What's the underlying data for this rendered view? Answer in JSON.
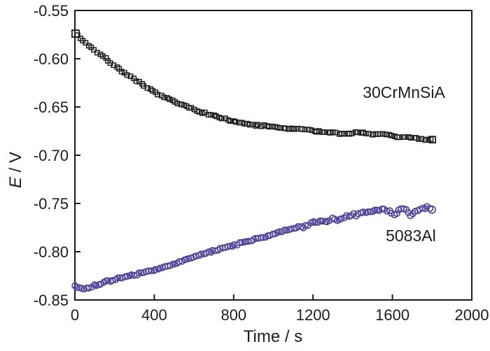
{
  "chart_data": {
    "type": "scatter",
    "title": "",
    "xlabel": "Time / s",
    "ylabel": "E / V",
    "ylabel_parts": {
      "symbol": "E",
      "rest": " / V"
    },
    "xlim": [
      0,
      2000
    ],
    "ylim": [
      -0.85,
      -0.55
    ],
    "x_ticks": [
      0,
      400,
      800,
      1200,
      1600,
      2000
    ],
    "x_tick_labels": [
      "0",
      "400",
      "800",
      "1200",
      "1600",
      "2000"
    ],
    "y_ticks": [
      -0.55,
      -0.6,
      -0.65,
      -0.7,
      -0.75,
      -0.8,
      -0.85
    ],
    "y_tick_labels": [
      "-0.55",
      "-0.60",
      "-0.65",
      "-0.70",
      "-0.75",
      "-0.80",
      "-0.85"
    ],
    "grid": false,
    "legend_position": "inline-annotations",
    "frame": "full-box",
    "tick_direction": "in",
    "axis_color": "#1c1c1c",
    "series": [
      {
        "name": "30CrMnSiA",
        "marker": "open-square",
        "color": "#1c1c1c",
        "scatter_v": 0.0011,
        "sample_step_s": 14,
        "anchors": [
          [
            0,
            -0.573
          ],
          [
            30,
            -0.579
          ],
          [
            60,
            -0.5845
          ],
          [
            100,
            -0.5912
          ],
          [
            140,
            -0.5975
          ],
          [
            180,
            -0.604
          ],
          [
            220,
            -0.6102
          ],
          [
            260,
            -0.616
          ],
          [
            300,
            -0.6218
          ],
          [
            350,
            -0.6285
          ],
          [
            400,
            -0.6345
          ],
          [
            450,
            -0.6398
          ],
          [
            500,
            -0.6445
          ],
          [
            550,
            -0.6488
          ],
          [
            600,
            -0.6525
          ],
          [
            650,
            -0.656
          ],
          [
            700,
            -0.6592
          ],
          [
            750,
            -0.6622
          ],
          [
            800,
            -0.665
          ],
          [
            850,
            -0.6672
          ],
          [
            900,
            -0.6688
          ],
          [
            950,
            -0.6695
          ],
          [
            1000,
            -0.6708
          ],
          [
            1050,
            -0.672
          ],
          [
            1100,
            -0.6732
          ],
          [
            1150,
            -0.6728
          ],
          [
            1200,
            -0.6744
          ],
          [
            1250,
            -0.6758
          ],
          [
            1300,
            -0.6768
          ],
          [
            1350,
            -0.6775
          ],
          [
            1400,
            -0.6773
          ],
          [
            1440,
            -0.6763
          ],
          [
            1480,
            -0.6778
          ],
          [
            1520,
            -0.679
          ],
          [
            1560,
            -0.6778
          ],
          [
            1600,
            -0.6798
          ],
          [
            1640,
            -0.6818
          ],
          [
            1680,
            -0.6812
          ],
          [
            1720,
            -0.6824
          ],
          [
            1760,
            -0.6838
          ],
          [
            1800,
            -0.6832
          ]
        ]
      },
      {
        "name": "5083Al",
        "marker": "open-circle",
        "color": "#4f4699",
        "scatter_v": 0.0013,
        "scatter_v_late": 0.0026,
        "late_after_s": 1150,
        "sample_step_s": 12,
        "anchors": [
          [
            0,
            -0.8355
          ],
          [
            25,
            -0.838
          ],
          [
            50,
            -0.8385
          ],
          [
            80,
            -0.8365
          ],
          [
            120,
            -0.8335
          ],
          [
            160,
            -0.831
          ],
          [
            200,
            -0.829
          ],
          [
            250,
            -0.8265
          ],
          [
            300,
            -0.8242
          ],
          [
            350,
            -0.8215
          ],
          [
            400,
            -0.819
          ],
          [
            450,
            -0.8158
          ],
          [
            500,
            -0.8125
          ],
          [
            550,
            -0.809
          ],
          [
            600,
            -0.8055
          ],
          [
            650,
            -0.8022
          ],
          [
            700,
            -0.7992
          ],
          [
            750,
            -0.7962
          ],
          [
            800,
            -0.7933
          ],
          [
            850,
            -0.7903
          ],
          [
            900,
            -0.7875
          ],
          [
            950,
            -0.7846
          ],
          [
            1000,
            -0.7818
          ],
          [
            1050,
            -0.7788
          ],
          [
            1100,
            -0.7759
          ],
          [
            1150,
            -0.773
          ],
          [
            1200,
            -0.77
          ],
          [
            1250,
            -0.7688
          ],
          [
            1300,
            -0.7668
          ],
          [
            1350,
            -0.765
          ],
          [
            1400,
            -0.7612
          ],
          [
            1450,
            -0.759
          ],
          [
            1500,
            -0.7572
          ],
          [
            1540,
            -0.756
          ],
          [
            1575,
            -0.7568
          ],
          [
            1605,
            -0.763
          ],
          [
            1635,
            -0.756
          ],
          [
            1665,
            -0.755
          ],
          [
            1695,
            -0.7628
          ],
          [
            1725,
            -0.7558
          ],
          [
            1760,
            -0.7545
          ],
          [
            1800,
            -0.7572
          ]
        ]
      }
    ],
    "annotations": [
      {
        "text": "30CrMnSiA",
        "t_s": 1658,
        "E_v": -0.6355
      },
      {
        "text": "5083Al",
        "t_s": 1693,
        "E_v": -0.784
      }
    ]
  }
}
